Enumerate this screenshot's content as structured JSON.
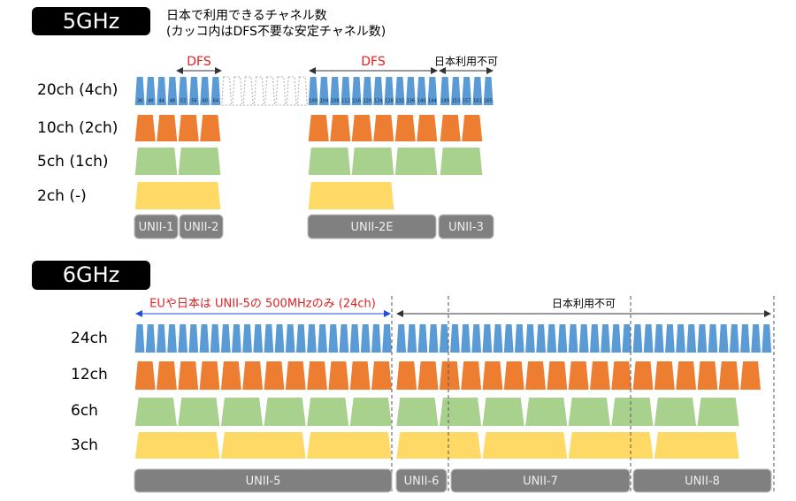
{
  "section_5ghz": {
    "badge": "5GHz",
    "note": [
      "日本で利用できるチャネル数",
      "(カッコ内はDFS不要な安定チャネル数)"
    ],
    "rows": [
      "20ch (4ch)",
      "10ch (2ch)",
      "5ch (1ch)",
      "2ch (-)"
    ],
    "channels": [
      [
        36,
        40,
        44,
        48,
        52,
        56,
        60,
        64
      ],
      [
        100,
        104,
        108,
        112,
        116,
        120,
        124,
        128,
        132,
        136,
        140,
        144
      ],
      [
        149,
        153,
        157,
        161,
        165
      ]
    ],
    "annotations": [
      "DFS",
      "DFS",
      "日本利用不可"
    ],
    "bands": [
      "UNII-1",
      "UNII-2",
      "UNII-2E",
      "UNII-3"
    ]
  },
  "section_6ghz": {
    "badge": "6GHz",
    "rows": [
      "24ch",
      "12ch",
      "6ch",
      "3ch"
    ],
    "annotations": [
      "EUや日本は UNII-5の 500MHzのみ (24ch)",
      "日本利用不可"
    ],
    "bands": [
      "UNII-5",
      "UNII-6",
      "UNII-7",
      "UNII-8"
    ]
  }
}
